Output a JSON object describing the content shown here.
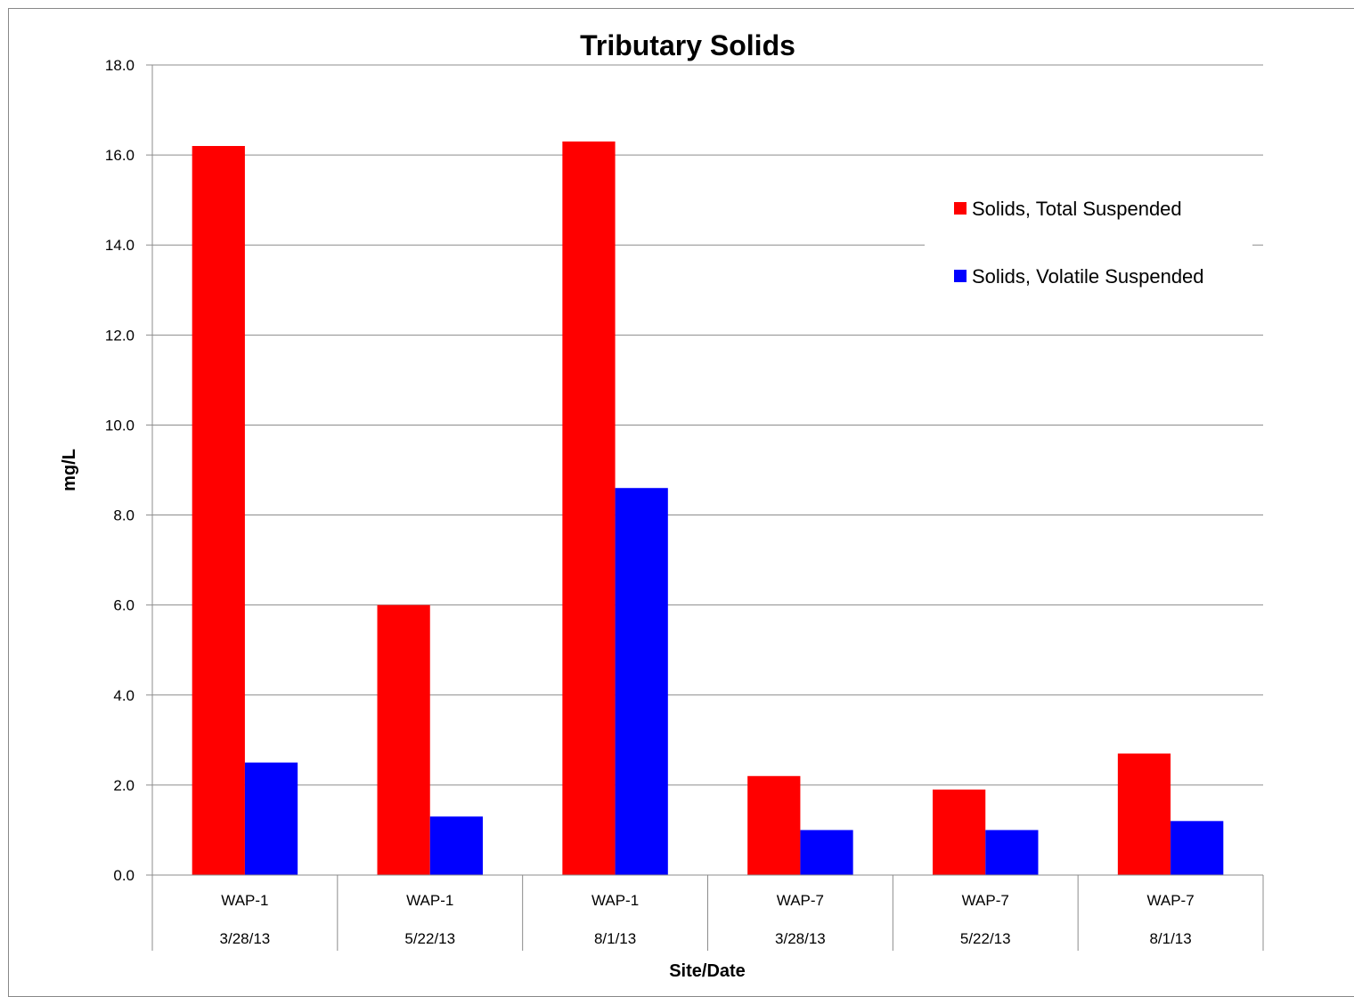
{
  "chart_data": {
    "type": "bar",
    "title": "Tributary Solids",
    "xlabel": "Site/Date",
    "ylabel": "mg/L",
    "ylim": [
      0,
      18
    ],
    "yticks": [
      "0.0",
      "2.0",
      "4.0",
      "6.0",
      "8.0",
      "10.0",
      "12.0",
      "14.0",
      "16.0",
      "18.0"
    ],
    "grid": true,
    "legend_position": "top-right",
    "categories": [
      {
        "site": "WAP-1",
        "date": "3/28/13"
      },
      {
        "site": "WAP-1",
        "date": "5/22/13"
      },
      {
        "site": "WAP-1",
        "date": "8/1/13"
      },
      {
        "site": "WAP-7",
        "date": "3/28/13"
      },
      {
        "site": "WAP-7",
        "date": "5/22/13"
      },
      {
        "site": "WAP-7",
        "date": "8/1/13"
      }
    ],
    "series": [
      {
        "name": "Solids, Total Suspended",
        "color": "#ff0000",
        "values": [
          16.2,
          6.0,
          16.3,
          2.2,
          1.9,
          2.7
        ]
      },
      {
        "name": "Solids, Volatile Suspended",
        "color": "#0000ff",
        "values": [
          2.5,
          1.3,
          8.6,
          1.0,
          1.0,
          1.2
        ]
      }
    ]
  }
}
